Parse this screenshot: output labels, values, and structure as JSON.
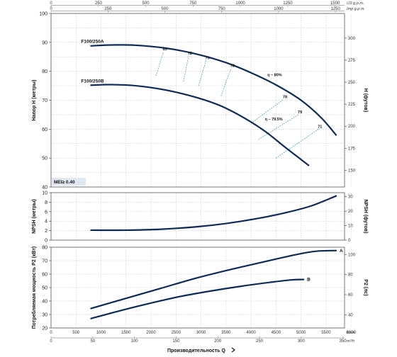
{
  "colors": {
    "curve": "#0d2a56",
    "efficiency_line": "#2f8bb3",
    "mei_box": "#dfe8f1"
  },
  "top_axes": [
    {
      "unit": "US g.p.m.",
      "ticks": [
        0,
        250,
        500,
        750,
        1000,
        1250,
        1500
      ],
      "max": 1550
    },
    {
      "unit": "Imp g.p.m.",
      "ticks": [
        0,
        250,
        500,
        750,
        1000,
        1250
      ],
      "max": 1290
    }
  ],
  "bottom_axes": [
    {
      "unit": "l/min",
      "ticks": [
        0,
        500,
        1000,
        1500,
        2000,
        2500,
        3000,
        3500,
        4000,
        4500,
        5000,
        5500,
        6000
      ],
      "max": 5870
    },
    {
      "unit": "m³/h",
      "ticks": [
        0,
        50,
        100,
        150,
        200,
        250,
        300,
        350
      ],
      "max": 352
    }
  ],
  "xlabel": "Производительность Q",
  "mei": "MEI≥ 0.40",
  "chart_data": [
    {
      "type": "line",
      "ylabel": "Напор H (метры)",
      "y2label": "H (футов)",
      "ylim": [
        40,
        100
      ],
      "yticks": [
        40,
        50,
        60,
        70,
        80,
        90,
        100
      ],
      "y2lim": [
        131,
        328
      ],
      "y2ticks": [
        150,
        175,
        200,
        225,
        250,
        275,
        300
      ],
      "series": [
        {
          "name": "F100/250A",
          "x": [
            800,
            1200,
            1700,
            2300,
            2900,
            3500,
            4000,
            4500,
            5000,
            5400,
            5700
          ],
          "y": [
            88.8,
            89.1,
            89,
            88,
            86,
            83,
            79.5,
            75.3,
            70,
            64,
            58
          ]
        },
        {
          "name": "F100/250B",
          "x": [
            800,
            1200,
            1700,
            2300,
            2900,
            3400,
            3900,
            4300,
            4700,
            5000,
            5150
          ],
          "y": [
            75.2,
            75.4,
            75,
            73.5,
            71,
            68,
            63.5,
            59,
            53.5,
            49.5,
            47.5
          ]
        }
      ],
      "efficiency": [
        {
          "label": "65",
          "x": [
            2100,
            2250
          ],
          "y": [
            78.5,
            86.8
          ]
        },
        {
          "label": "72",
          "x": [
            2650,
            2750
          ],
          "y": [
            76.5,
            85.3
          ]
        },
        {
          "label": "75",
          "x": [
            2950,
            3100
          ],
          "y": [
            75,
            83.7
          ]
        },
        {
          "label": "78",
          "x": [
            3400,
            3600
          ],
          "y": [
            71.5,
            81
          ]
        },
        {
          "label": "78",
          "x": [
            4000,
            4650
          ],
          "y": [
            62,
            70.3
          ]
        },
        {
          "label": "79",
          "x": [
            4150,
            4950
          ],
          "y": [
            56.5,
            65
          ]
        },
        {
          "label": "71",
          "x": [
            4500,
            5350
          ],
          "y": [
            50,
            60
          ]
        }
      ],
      "annotations": [
        {
          "text": "η – 80%",
          "x": 4100,
          "y": 78.8
        },
        {
          "text": "η – 79.5%",
          "x": 4050,
          "y": 63.5
        }
      ]
    },
    {
      "type": "line",
      "ylabel": "NPSH (метры)",
      "y2label": "NPSH (футов)",
      "ylim": [
        0,
        10
      ],
      "yticks": [
        0,
        2,
        4,
        6,
        8,
        10
      ],
      "y2lim": [
        0,
        32.8
      ],
      "y2ticks": [
        0,
        10,
        20,
        30
      ],
      "series": [
        {
          "name": "",
          "x": [
            800,
            1500,
            2200,
            2900,
            3500,
            4100,
            4700,
            5200,
            5700
          ],
          "y": [
            2.1,
            2.1,
            2.3,
            2.8,
            3.5,
            4.5,
            5.8,
            7.2,
            9.3
          ]
        }
      ]
    },
    {
      "type": "line",
      "ylabel": "Потребляемая мощность P2 (кВт)",
      "y2label": "P2 (лс)",
      "ylim": [
        20,
        80
      ],
      "yticks": [
        20,
        30,
        40,
        50,
        60,
        70,
        80
      ],
      "y2lim": [
        26.8,
        107.3
      ],
      "y2ticks": [
        40,
        60,
        80,
        100
      ],
      "series": [
        {
          "name": "A",
          "x": [
            800,
            1500,
            2200,
            2900,
            3600,
            4300,
            4900,
            5300,
            5700
          ],
          "y": [
            34.5,
            42,
            49.5,
            57,
            63.5,
            69.5,
            74.5,
            77,
            77.5
          ]
        },
        {
          "name": "B",
          "x": [
            800,
            1400,
            2000,
            2600,
            3200,
            3800,
            4400,
            4800,
            5050
          ],
          "y": [
            27,
            33,
            38.5,
            43.5,
            47.5,
            51,
            54,
            55.7,
            56
          ]
        }
      ]
    }
  ]
}
